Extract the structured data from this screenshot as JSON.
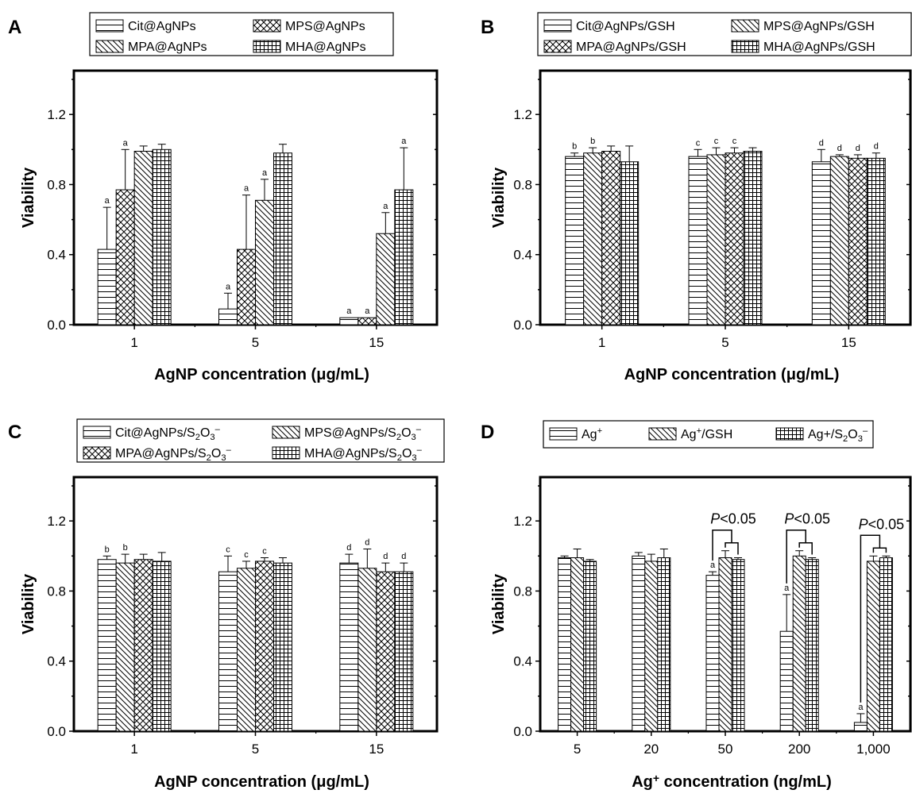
{
  "chart_data": [
    {
      "panel": "A",
      "type": "bar",
      "ylabel": "Viability",
      "xlabel": "AgNP concentration (μg/mL)",
      "ylim": [
        0,
        1.45
      ],
      "yticks": [
        "0.0",
        "0.4",
        "0.8",
        "1.2"
      ],
      "categories": [
        "1",
        "5",
        "15"
      ],
      "legend_columns": 2,
      "series": [
        {
          "name": "Cit@AgNPs",
          "pattern": "hlines",
          "values": [
            0.43,
            0.09,
            0.04
          ],
          "errors": [
            0.24,
            0.09,
            0.0
          ],
          "labels": [
            "a",
            "a",
            "a"
          ]
        },
        {
          "name": "MPS@AgNPs",
          "pattern": "crosshatch",
          "values": [
            0.77,
            0.43,
            0.04
          ],
          "errors": [
            0.23,
            0.31,
            0.0
          ],
          "labels": [
            "a",
            "a",
            "a"
          ]
        },
        {
          "name": "MPA@AgNPs",
          "pattern": "diag",
          "values": [
            0.99,
            0.71,
            0.52
          ],
          "errors": [
            0.03,
            0.12,
            0.12
          ],
          "labels": [
            "",
            "a",
            "a"
          ]
        },
        {
          "name": "MHA@AgNPs",
          "pattern": "grid",
          "values": [
            1.0,
            0.98,
            0.77
          ],
          "errors": [
            0.03,
            0.05,
            0.24
          ],
          "labels": [
            "",
            "",
            "a"
          ]
        }
      ],
      "annotations": []
    },
    {
      "panel": "B",
      "type": "bar",
      "ylabel": "Viability",
      "xlabel": "AgNP concentration (μg/mL)",
      "ylim": [
        0,
        1.45
      ],
      "yticks": [
        "0.0",
        "0.4",
        "0.8",
        "1.2"
      ],
      "categories": [
        "1",
        "5",
        "15"
      ],
      "legend_columns": 2,
      "series": [
        {
          "name": "Cit@AgNPs/GSH",
          "pattern": "hlines",
          "values": [
            0.96,
            0.96,
            0.93
          ],
          "errors": [
            0.02,
            0.04,
            0.07
          ],
          "labels": [
            "b",
            "c",
            "d"
          ]
        },
        {
          "name": "MPS@AgNPs/GSH",
          "pattern": "diag",
          "values": [
            0.98,
            0.97,
            0.96
          ],
          "errors": [
            0.03,
            0.04,
            0.01
          ],
          "labels": [
            "b",
            "c",
            "d"
          ]
        },
        {
          "name": "MPA@AgNPs/GSH",
          "pattern": "crosshatch",
          "values": [
            0.99,
            0.98,
            0.95
          ],
          "errors": [
            0.03,
            0.03,
            0.02
          ],
          "labels": [
            "",
            "c",
            "d"
          ]
        },
        {
          "name": "MHA@AgNPs/GSH",
          "pattern": "grid",
          "values": [
            0.93,
            0.99,
            0.95
          ],
          "errors": [
            0.09,
            0.02,
            0.03
          ],
          "labels": [
            "",
            "",
            "d"
          ]
        }
      ],
      "annotations": []
    },
    {
      "panel": "C",
      "type": "bar",
      "ylabel": "Viability",
      "xlabel": "AgNP concentration (μg/mL)",
      "ylim": [
        0,
        1.45
      ],
      "yticks": [
        "0.0",
        "0.4",
        "0.8",
        "1.2"
      ],
      "categories": [
        "1",
        "5",
        "15"
      ],
      "legend_columns": 2,
      "series": [
        {
          "name": "Cit@AgNPs/S2O32–",
          "pattern": "hlines",
          "values": [
            0.98,
            0.91,
            0.96
          ],
          "errors": [
            0.02,
            0.09,
            0.05
          ],
          "labels": [
            "b",
            "c",
            "d"
          ]
        },
        {
          "name": "MPS@AgNPs/S2O32–",
          "pattern": "diag",
          "values": [
            0.96,
            0.93,
            0.93
          ],
          "errors": [
            0.05,
            0.04,
            0.11
          ],
          "labels": [
            "b",
            "c",
            "d"
          ]
        },
        {
          "name": "MPA@AgNPs/S2O32–",
          "pattern": "crosshatch",
          "values": [
            0.98,
            0.97,
            0.91
          ],
          "errors": [
            0.03,
            0.02,
            0.05
          ],
          "labels": [
            "",
            "c",
            "d"
          ]
        },
        {
          "name": "MHA@AgNPs/S2O32–",
          "pattern": "grid",
          "values": [
            0.97,
            0.96,
            0.91
          ],
          "errors": [
            0.05,
            0.03,
            0.05
          ],
          "labels": [
            "",
            "",
            "d"
          ]
        }
      ],
      "annotations": []
    },
    {
      "panel": "D",
      "type": "bar",
      "ylabel": "Viability",
      "xlabel": "Ag+ concentration (ng/mL)",
      "ylim": [
        0,
        1.45
      ],
      "yticks": [
        "0.0",
        "0.4",
        "0.8",
        "1.2"
      ],
      "categories": [
        "5",
        "20",
        "50",
        "200",
        "1,000"
      ],
      "legend_columns": 3,
      "series": [
        {
          "name": "Ag+",
          "pattern": "hlines",
          "values": [
            0.99,
            1.0,
            0.89,
            0.57,
            0.05
          ],
          "errors": [
            0.01,
            0.02,
            0.02,
            0.21,
            0.05
          ],
          "labels": [
            "",
            "",
            "a",
            "a",
            "a"
          ]
        },
        {
          "name": "Ag+/GSH",
          "pattern": "diag",
          "values": [
            0.99,
            0.97,
            0.99,
            1.0,
            0.97
          ],
          "errors": [
            0.05,
            0.04,
            0.04,
            0.03,
            0.03
          ],
          "labels": [
            "",
            "",
            "",
            "",
            ""
          ]
        },
        {
          "name": "Ag+/S2O32–",
          "pattern": "grid",
          "values": [
            0.97,
            0.99,
            0.98,
            0.98,
            0.99
          ],
          "errors": [
            0.01,
            0.05,
            0.01,
            0.01,
            0.01
          ],
          "labels": [
            "",
            "",
            "",
            "",
            ""
          ]
        }
      ],
      "annotations": [
        {
          "category_index": 2,
          "text": "P<0.05"
        },
        {
          "category_index": 3,
          "text": "P<0.05"
        },
        {
          "category_index": 4,
          "text": "P<0.05"
        }
      ]
    }
  ]
}
